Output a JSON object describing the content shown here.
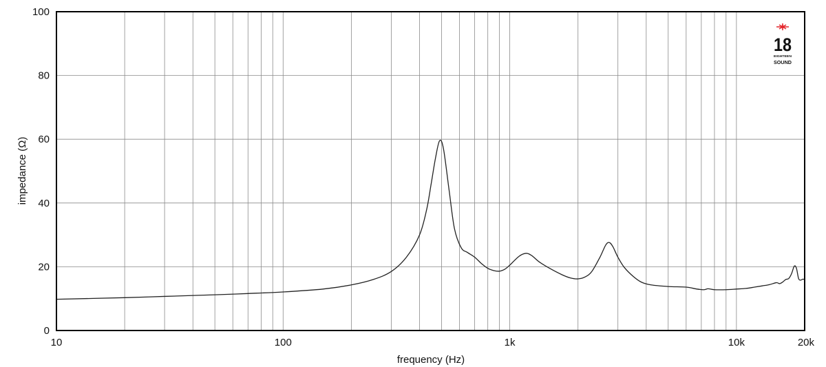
{
  "chart_data": {
    "type": "line",
    "xlabel": "frequency (Hz)",
    "ylabel": "impedance (Ω)",
    "xscale": "log",
    "xlim": [
      10,
      20000
    ],
    "ylim": [
      0,
      100
    ],
    "grid": true,
    "x_ticks": [
      {
        "value": 10,
        "label": "10"
      },
      {
        "value": 100,
        "label": "100"
      },
      {
        "value": 1000,
        "label": "1k"
      },
      {
        "value": 10000,
        "label": "10k"
      },
      {
        "value": 20000,
        "label": "20k"
      }
    ],
    "y_ticks": [
      {
        "value": 0,
        "label": "0"
      },
      {
        "value": 20,
        "label": "20"
      },
      {
        "value": 40,
        "label": "40"
      },
      {
        "value": 60,
        "label": "60"
      },
      {
        "value": 80,
        "label": "80"
      },
      {
        "value": 100,
        "label": "100"
      }
    ],
    "series": [
      {
        "color": "#222222",
        "points": [
          [
            10,
            9.8
          ],
          [
            20,
            10.3
          ],
          [
            30,
            10.7
          ],
          [
            50,
            11.2
          ],
          [
            70,
            11.6
          ],
          [
            100,
            12.1
          ],
          [
            150,
            13.0
          ],
          [
            200,
            14.3
          ],
          [
            250,
            16.0
          ],
          [
            300,
            18.5
          ],
          [
            350,
            23.0
          ],
          [
            400,
            30.0
          ],
          [
            430,
            38.0
          ],
          [
            450,
            46.0
          ],
          [
            470,
            54.0
          ],
          [
            490,
            59.5
          ],
          [
            510,
            57.0
          ],
          [
            540,
            44.0
          ],
          [
            570,
            32.0
          ],
          [
            610,
            26.0
          ],
          [
            650,
            24.5
          ],
          [
            700,
            23.0
          ],
          [
            750,
            21.0
          ],
          [
            800,
            19.5
          ],
          [
            850,
            18.8
          ],
          [
            900,
            18.6
          ],
          [
            950,
            19.2
          ],
          [
            1000,
            20.5
          ],
          [
            1100,
            23.3
          ],
          [
            1180,
            24.2
          ],
          [
            1250,
            23.5
          ],
          [
            1350,
            21.5
          ],
          [
            1500,
            19.5
          ],
          [
            1700,
            17.5
          ],
          [
            1850,
            16.5
          ],
          [
            2000,
            16.2
          ],
          [
            2150,
            16.8
          ],
          [
            2300,
            18.5
          ],
          [
            2500,
            23.0
          ],
          [
            2650,
            26.8
          ],
          [
            2750,
            27.6
          ],
          [
            2850,
            26.3
          ],
          [
            3000,
            23.0
          ],
          [
            3200,
            19.8
          ],
          [
            3500,
            17.0
          ],
          [
            3800,
            15.2
          ],
          [
            4200,
            14.3
          ],
          [
            5000,
            13.8
          ],
          [
            6000,
            13.6
          ],
          [
            6700,
            13.0
          ],
          [
            7200,
            12.8
          ],
          [
            7500,
            13.1
          ],
          [
            8000,
            12.8
          ],
          [
            9000,
            12.8
          ],
          [
            10000,
            13.0
          ],
          [
            11000,
            13.2
          ],
          [
            12000,
            13.6
          ],
          [
            13000,
            14.0
          ],
          [
            14000,
            14.4
          ],
          [
            15000,
            15.0
          ],
          [
            15500,
            14.7
          ],
          [
            16000,
            15.2
          ],
          [
            16500,
            16.0
          ],
          [
            17000,
            16.3
          ],
          [
            17500,
            17.8
          ],
          [
            18000,
            20.2
          ],
          [
            18400,
            19.5
          ],
          [
            18800,
            16.3
          ],
          [
            19200,
            15.8
          ],
          [
            19600,
            16.1
          ],
          [
            20000,
            16.0
          ]
        ]
      }
    ]
  },
  "logo": {
    "number": "18",
    "line1": "EIGHTEEN",
    "line2": "SOUND",
    "star_color": "#e4262c"
  }
}
